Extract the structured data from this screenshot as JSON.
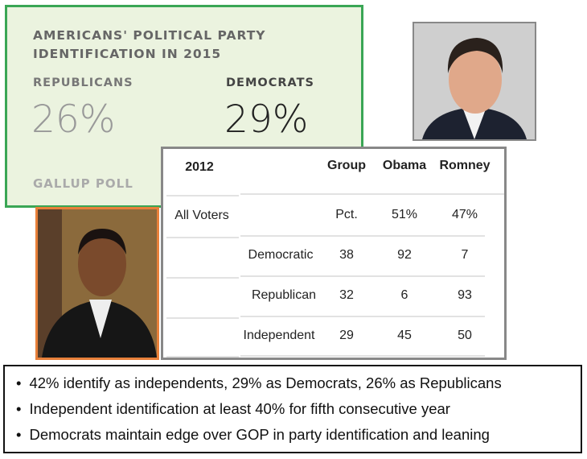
{
  "gallup": {
    "title_line1": "AMERICANS' POLITICAL PARTY",
    "title_line2": "IDENTIFICATION IN 2015",
    "republicans_label": "REPUBLICANS",
    "republicans_value": "26%",
    "democrats_label": "DEMOCRATS",
    "democrats_value": "29%",
    "source": "GALLUP POLL",
    "border_color": "#3aa655"
  },
  "table": {
    "year": "2012",
    "headers": [
      "Group",
      "Obama",
      "Romney"
    ],
    "all_voters": {
      "label": "All Voters",
      "group": "Pct.",
      "obama": "51%",
      "romney": "47%"
    },
    "rows": [
      {
        "label": "Democratic",
        "group": "38",
        "obama": "92",
        "romney": "7"
      },
      {
        "label": "Republican",
        "group": "32",
        "obama": "6",
        "romney": "93"
      },
      {
        "label": "Independent",
        "group": "29",
        "obama": "45",
        "romney": "50"
      }
    ]
  },
  "bullets": [
    "42% identify as independents, 29% as Democrats, 26% as Republicans",
    "Independent identification at least 40% for fifth consecutive year",
    "Democrats maintain edge over GOP in party identification and leaning"
  ]
}
